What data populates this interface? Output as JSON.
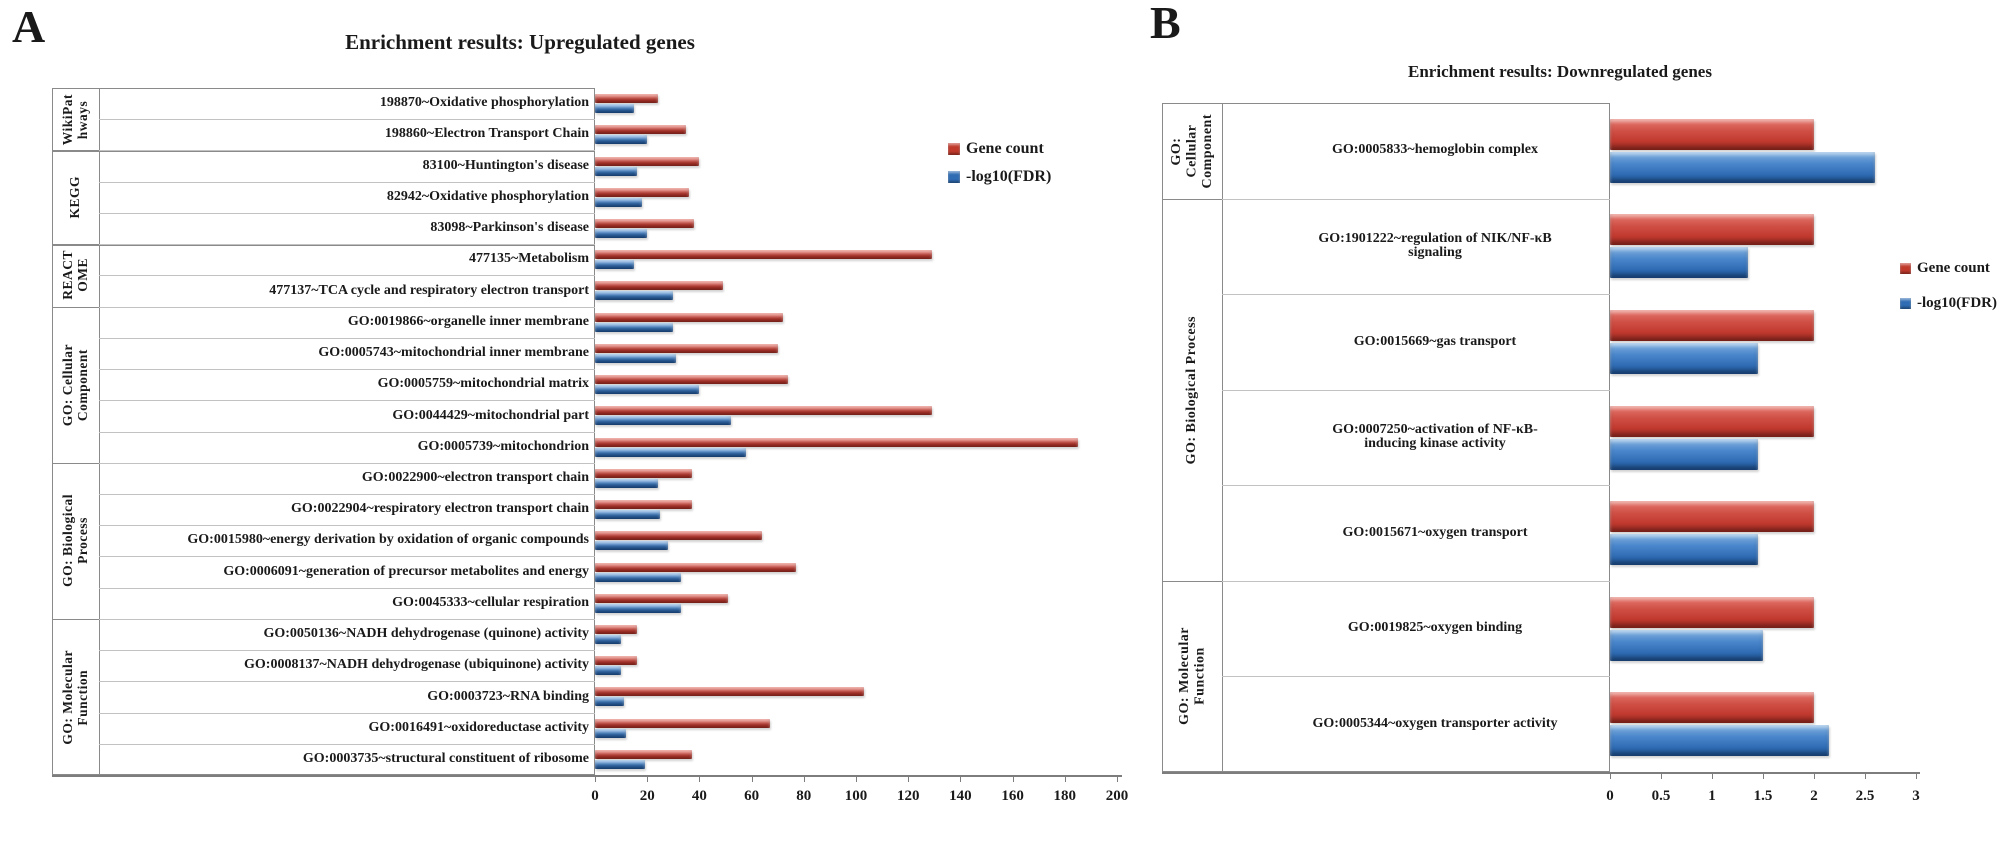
{
  "chart_data": [
    {
      "panel": "A",
      "type": "bar",
      "orientation": "horizontal",
      "title": "Enrichment results: Upregulated genes",
      "legend": [
        "Gene count",
        "-log10(FDR)"
      ],
      "legend_position": "right",
      "grid": false,
      "colors": {
        "gene_count": "#c23a30",
        "fdr": "#2f6cb4"
      },
      "xlim": [
        0,
        200
      ],
      "xticks": [
        0,
        20,
        40,
        60,
        80,
        100,
        120,
        140,
        160,
        180,
        200
      ],
      "xtick_labels": [
        "0",
        "20",
        "40",
        "60",
        "80",
        "100",
        "120",
        "140",
        "160",
        "180",
        "200"
      ],
      "category_groups": [
        {
          "label": "WikiPat\nhways",
          "span": 2
        },
        {
          "label": "KEGG",
          "span": 3
        },
        {
          "label": "REACT\nOME",
          "span": 2
        },
        {
          "label": "GO: Cellular\nComponent",
          "span": 5
        },
        {
          "label": "GO: Biological\nProcess",
          "span": 5
        },
        {
          "label": "GO: Molecular\nFunction",
          "span": 5
        }
      ],
      "categories": [
        "198870~Oxidative phosphorylation",
        "198860~Electron Transport Chain",
        "83100~Huntington's disease",
        "82942~Oxidative phosphorylation",
        "83098~Parkinson's disease",
        "477135~Metabolism",
        "477137~TCA cycle and respiratory electron transport",
        "GO:0019866~organelle inner membrane",
        "GO:0005743~mitochondrial inner membrane",
        "GO:0005759~mitochondrial matrix",
        "GO:0044429~mitochondrial part",
        "GO:0005739~mitochondrion",
        "GO:0022900~electron transport chain",
        "GO:0022904~respiratory electron transport chain",
        "GO:0015980~energy derivation by oxidation of organic compounds",
        "GO:0006091~generation of precursor metabolites and energy",
        "GO:0045333~cellular respiration",
        "GO:0050136~NADH dehydrogenase (quinone) activity",
        "GO:0008137~NADH dehydrogenase (ubiquinone) activity",
        "GO:0003723~RNA binding",
        "GO:0016491~oxidoreductase activity",
        "GO:0003735~structural constituent of ribosome"
      ],
      "series": [
        {
          "name": "Gene count",
          "values": [
            24,
            35,
            40,
            36,
            38,
            129,
            49,
            72,
            70,
            74,
            129,
            185,
            37,
            37,
            64,
            77,
            51,
            16,
            16,
            103,
            67,
            37
          ]
        },
        {
          "name": "-log10(FDR)",
          "values": [
            15,
            20,
            16,
            18,
            20,
            15,
            30,
            30,
            31,
            40,
            52,
            58,
            24,
            25,
            28,
            33,
            33,
            10,
            10,
            11,
            12,
            19
          ]
        }
      ]
    },
    {
      "panel": "B",
      "type": "bar",
      "orientation": "horizontal",
      "title": "Enrichment results: Downregulated genes",
      "legend": [
        "Gene count",
        "-log10(FDR)"
      ],
      "legend_position": "right",
      "grid": false,
      "colors": {
        "gene_count": "#c23a30",
        "fdr": "#2f6cb4"
      },
      "xlim": [
        0,
        3
      ],
      "xticks": [
        0,
        0.5,
        1,
        1.5,
        2,
        2.5,
        3
      ],
      "xtick_labels": [
        "0",
        "0.5",
        "1",
        "1.5",
        "2",
        "2.5",
        "3"
      ],
      "category_groups": [
        {
          "label": "GO:\nCellular\nComponent",
          "span": 1
        },
        {
          "label": "GO: Biological Process",
          "span": 4
        },
        {
          "label": "GO: Molecular\nFunction",
          "span": 2
        }
      ],
      "categories": [
        "GO:0005833~hemoglobin complex",
        "GO:1901222~regulation of NIK/NF-κB signaling",
        "GO:0015669~gas transport",
        "GO:0007250~activation of NF-κB-inducing kinase activity",
        "GO:0015671~oxygen transport",
        "GO:0019825~oxygen binding",
        "GO:0005344~oxygen transporter activity"
      ],
      "series": [
        {
          "name": "Gene count",
          "values": [
            2,
            2,
            2,
            2,
            2,
            2,
            2
          ]
        },
        {
          "name": "-log10(FDR)",
          "values": [
            2.6,
            1.35,
            1.45,
            1.45,
            1.45,
            1.5,
            2.15
          ]
        }
      ]
    }
  ]
}
